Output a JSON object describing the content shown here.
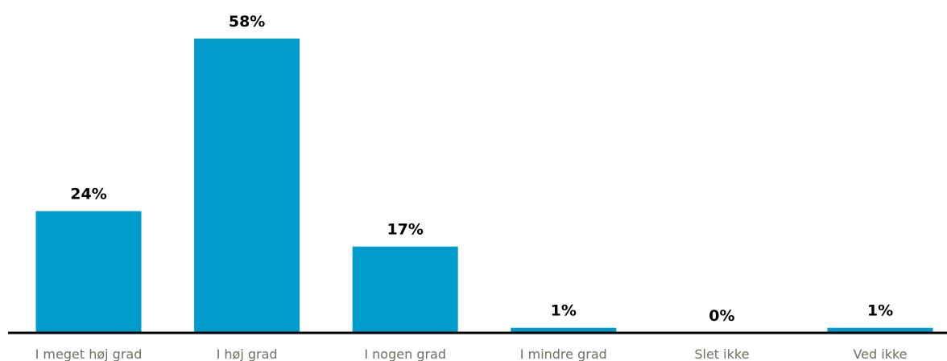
{
  "chart_data": {
    "type": "bar",
    "categories": [
      "I meget høj grad",
      "I høj grad",
      "I nogen grad",
      "I mindre grad",
      "Slet ikke",
      "Ved ikke"
    ],
    "values": [
      24,
      58,
      17,
      1,
      0,
      1
    ],
    "value_labels": [
      "24%",
      "58%",
      "17%",
      "1%",
      "0%",
      "1%"
    ],
    "title": "",
    "xlabel": "",
    "ylabel": "",
    "ylim": [
      0,
      58
    ],
    "grid": false,
    "legend": "none",
    "colors": {
      "bar": "#009ccc",
      "axis": "#000000",
      "value_label": "#000000",
      "category_label": "#6f6f62"
    }
  }
}
